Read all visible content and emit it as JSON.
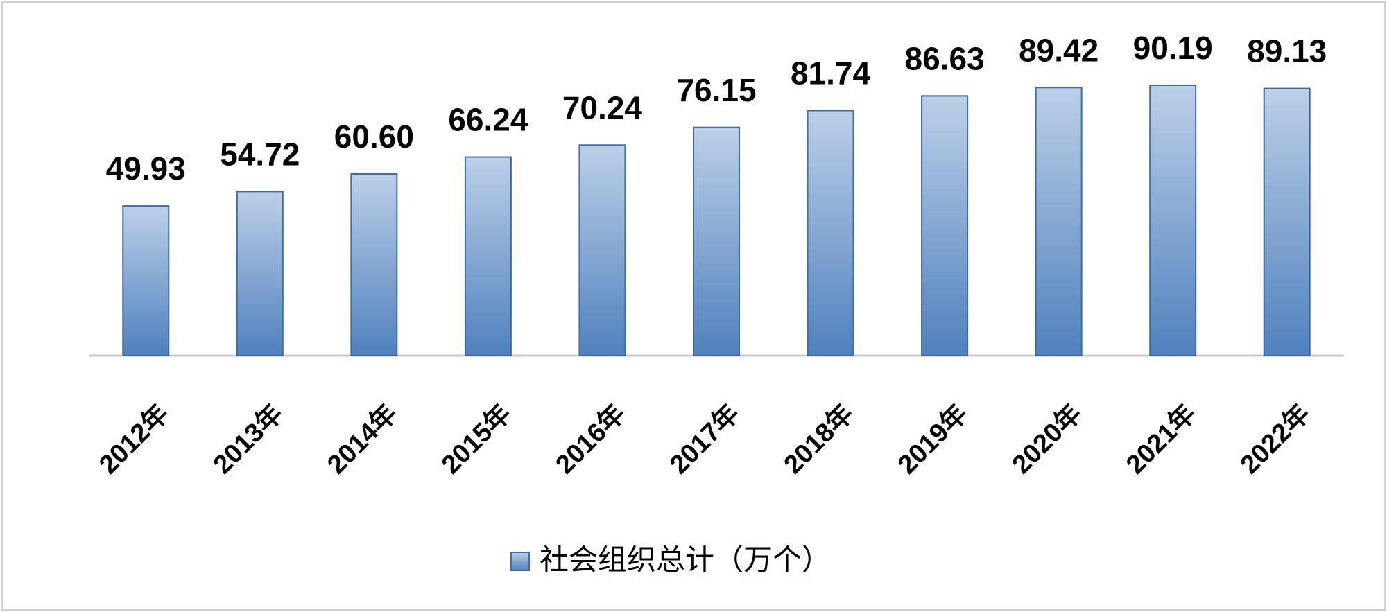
{
  "chart_data": {
    "type": "bar",
    "categories": [
      "2012年",
      "2013年",
      "2014年",
      "2015年",
      "2016年",
      "2017年",
      "2018年",
      "2019年",
      "2020年",
      "2021年",
      "2022年"
    ],
    "series": [
      {
        "name": "社会组织总计（万个）",
        "color": "#4f81bd",
        "values": [
          49.93,
          54.72,
          60.6,
          66.24,
          70.24,
          76.15,
          81.74,
          86.63,
          89.42,
          90.19,
          89.13
        ],
        "value_labels": [
          "49.93",
          "54.72",
          "60.60",
          "66.24",
          "70.24",
          "76.15",
          "81.74",
          "86.63",
          "89.42",
          "90.19",
          "89.13"
        ]
      }
    ],
    "legend": "bottom"
  }
}
